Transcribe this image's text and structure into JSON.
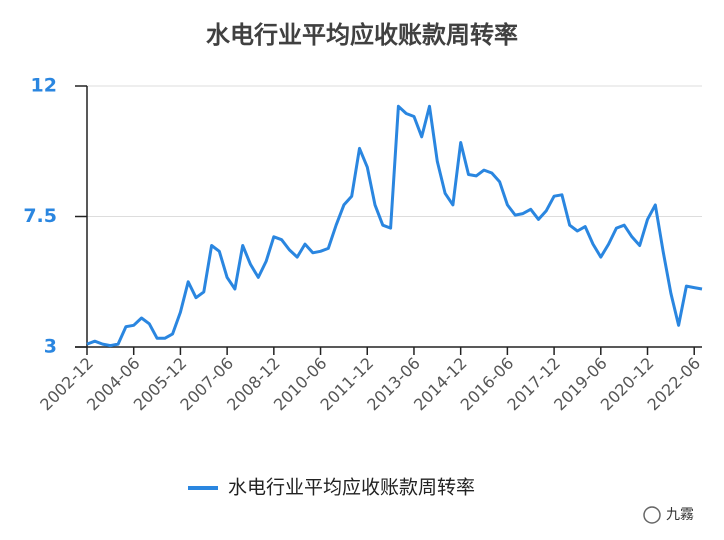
{
  "chart_data": {
    "type": "line",
    "title": "水电行业平均应收账款周转率",
    "categories": [
      "2002-12",
      null,
      null,
      null,
      null,
      null,
      "2004-06",
      null,
      null,
      null,
      null,
      null,
      "2005-12",
      null,
      null,
      null,
      null,
      null,
      "2007-06",
      null,
      null,
      null,
      null,
      null,
      "2008-12",
      null,
      null,
      null,
      null,
      null,
      "2010-06",
      null,
      null,
      null,
      null,
      null,
      "2011-12",
      null,
      null,
      null,
      null,
      null,
      "2013-06",
      null,
      null,
      null,
      null,
      null,
      "2014-12",
      null,
      null,
      null,
      null,
      null,
      "2016-06",
      null,
      null,
      null,
      null,
      null,
      "2017-12",
      null,
      null,
      null,
      null,
      null,
      "2019-06",
      null,
      null,
      null,
      null,
      null,
      "2020-12",
      null,
      null,
      null,
      null,
      null,
      "2022-06",
      null
    ],
    "series": [
      {
        "name": "水电行业平均应收账款周转率",
        "color": "#2a86e0",
        "values": [
          3.1,
          3.2,
          3.1,
          3.05,
          3.1,
          3.7,
          3.75,
          4.0,
          3.8,
          3.3,
          3.3,
          3.45,
          4.2,
          5.25,
          4.7,
          4.9,
          6.5,
          6.3,
          5.4,
          5.0,
          6.5,
          5.85,
          5.4,
          5.95,
          6.8,
          6.7,
          6.35,
          6.1,
          6.55,
          6.25,
          6.3,
          6.4,
          7.2,
          7.9,
          8.2,
          9.85,
          9.2,
          7.9,
          7.2,
          7.1,
          11.3,
          11.05,
          10.95,
          10.25,
          11.3,
          9.4,
          8.3,
          7.9,
          10.05,
          8.95,
          8.9,
          9.1,
          9.0,
          8.7,
          7.9,
          7.55,
          7.6,
          7.75,
          7.4,
          7.7,
          8.2,
          8.25,
          7.2,
          7.0,
          7.15,
          6.55,
          6.1,
          6.55,
          7.1,
          7.2,
          6.8,
          6.5,
          7.4,
          7.9,
          6.3,
          4.85,
          3.75,
          5.1,
          5.05,
          5.0
        ]
      }
    ],
    "ylim": [
      3,
      12
    ],
    "yticks": [
      3,
      7.5,
      12
    ],
    "grid": true,
    "legend": "bottom"
  },
  "watermark": "九霧"
}
